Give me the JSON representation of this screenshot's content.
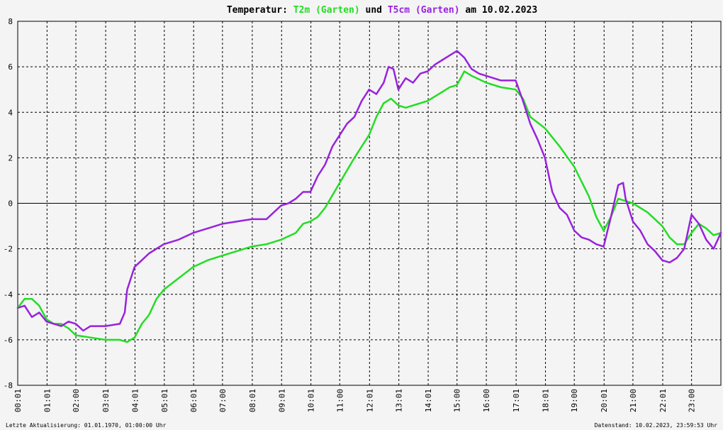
{
  "title": {
    "prefix": "Temperatur: ",
    "series1": "T2m (Garten)",
    "mid": " und ",
    "series2": "T5cm (Garten)",
    "suffix": " am 10.02.2023"
  },
  "footer": {
    "left": "Letzte Aktualisierung: 01.01.1970, 01:00:00 Uhr",
    "right": "Datenstand: 10.02.2023, 23:59:53 Uhr"
  },
  "colors": {
    "background": "#f4f4f4",
    "t2m": "#22dd22",
    "t5cm": "#9922dd",
    "grid": "#000000",
    "zero_line": "#000000"
  },
  "chart_data": {
    "type": "line",
    "title": "Temperatur: T2m (Garten) und T5cm (Garten) am 10.02.2023",
    "xlabel": "",
    "ylabel": "",
    "xlim": [
      "00:01",
      "24:00"
    ],
    "ylim": [
      -8,
      8
    ],
    "grid": true,
    "legend": "in title",
    "x_ticks": [
      "00:01",
      "01:01",
      "02:00",
      "03:01",
      "04:01",
      "05:01",
      "06:01",
      "07:00",
      "08:01",
      "09:01",
      "10:01",
      "11:00",
      "12:01",
      "13:01",
      "14:01",
      "15:00",
      "16:00",
      "17:01",
      "18:01",
      "19:00",
      "20:01",
      "21:00",
      "22:01",
      "23:00"
    ],
    "y_ticks": [
      8,
      6,
      4,
      2,
      0,
      -2,
      -4,
      -6,
      -8
    ],
    "series": [
      {
        "name": "T2m (Garten)",
        "color": "#22dd22",
        "x": [
          "00:01",
          "00:15",
          "00:30",
          "00:45",
          "01:00",
          "01:15",
          "01:30",
          "01:45",
          "02:00",
          "02:30",
          "03:00",
          "03:30",
          "03:45",
          "04:00",
          "04:15",
          "04:30",
          "04:45",
          "05:00",
          "05:30",
          "06:00",
          "06:30",
          "07:00",
          "07:30",
          "08:00",
          "08:30",
          "09:00",
          "09:30",
          "09:45",
          "10:00",
          "10:15",
          "10:30",
          "11:00",
          "11:30",
          "12:00",
          "12:15",
          "12:30",
          "12:45",
          "13:00",
          "13:15",
          "13:30",
          "14:00",
          "14:30",
          "14:45",
          "15:00",
          "15:15",
          "15:30",
          "16:00",
          "16:30",
          "17:00",
          "17:15",
          "17:30",
          "18:00",
          "18:30",
          "19:00",
          "19:30",
          "19:45",
          "20:00",
          "20:15",
          "20:30",
          "21:00",
          "21:30",
          "22:00",
          "22:15",
          "22:30",
          "22:45",
          "23:00",
          "23:15",
          "23:30",
          "23:45",
          "24:00"
        ],
        "values": [
          -4.6,
          -4.2,
          -4.2,
          -4.5,
          -5.1,
          -5.3,
          -5.3,
          -5.5,
          -5.8,
          -5.9,
          -6.0,
          -6.0,
          -6.1,
          -5.9,
          -5.3,
          -4.9,
          -4.2,
          -3.8,
          -3.3,
          -2.8,
          -2.5,
          -2.3,
          -2.1,
          -1.9,
          -1.8,
          -1.6,
          -1.3,
          -0.9,
          -0.8,
          -0.6,
          -0.2,
          0.9,
          2.0,
          3.0,
          3.8,
          4.4,
          4.6,
          4.3,
          4.2,
          4.3,
          4.5,
          4.9,
          5.1,
          5.2,
          5.8,
          5.6,
          5.3,
          5.1,
          5.0,
          4.6,
          3.8,
          3.3,
          2.5,
          1.6,
          0.3,
          -0.6,
          -1.2,
          -0.6,
          0.2,
          0.0,
          -0.4,
          -1.0,
          -1.5,
          -1.8,
          -1.8,
          -1.3,
          -0.9,
          -1.1,
          -1.4,
          -1.3
        ]
      },
      {
        "name": "T5cm (Garten)",
        "color": "#9922dd",
        "x": [
          "00:01",
          "00:15",
          "00:30",
          "00:45",
          "01:00",
          "01:15",
          "01:30",
          "01:45",
          "02:00",
          "02:15",
          "02:30",
          "03:00",
          "03:30",
          "03:40",
          "03:45",
          "04:00",
          "04:15",
          "04:30",
          "05:00",
          "05:30",
          "06:00",
          "06:30",
          "07:00",
          "07:30",
          "08:00",
          "08:30",
          "08:45",
          "09:00",
          "09:15",
          "09:30",
          "09:45",
          "10:00",
          "10:15",
          "10:30",
          "10:45",
          "11:00",
          "11:15",
          "11:30",
          "11:45",
          "12:00",
          "12:15",
          "12:30",
          "12:40",
          "12:50",
          "13:00",
          "13:15",
          "13:30",
          "13:45",
          "14:00",
          "14:15",
          "14:30",
          "14:45",
          "15:00",
          "15:15",
          "15:30",
          "15:45",
          "16:00",
          "16:30",
          "17:00",
          "17:15",
          "17:30",
          "17:45",
          "18:00",
          "18:15",
          "18:30",
          "18:45",
          "19:00",
          "19:15",
          "19:30",
          "19:45",
          "20:00",
          "20:15",
          "20:30",
          "20:40",
          "20:45",
          "21:00",
          "21:15",
          "21:30",
          "21:45",
          "22:00",
          "22:15",
          "22:30",
          "22:45",
          "23:00",
          "23:15",
          "23:30",
          "23:45",
          "24:00"
        ],
        "values": [
          -4.6,
          -4.5,
          -5.0,
          -4.8,
          -5.2,
          -5.3,
          -5.4,
          -5.2,
          -5.3,
          -5.6,
          -5.4,
          -5.4,
          -5.3,
          -4.8,
          -3.8,
          -2.8,
          -2.5,
          -2.2,
          -1.8,
          -1.6,
          -1.3,
          -1.1,
          -0.9,
          -0.8,
          -0.7,
          -0.7,
          -0.4,
          -0.1,
          0.0,
          0.2,
          0.5,
          0.5,
          1.2,
          1.7,
          2.5,
          3.0,
          3.5,
          3.8,
          4.5,
          5.0,
          4.8,
          5.3,
          6.0,
          5.9,
          5.0,
          5.5,
          5.3,
          5.7,
          5.8,
          6.1,
          6.3,
          6.5,
          6.7,
          6.4,
          5.9,
          5.7,
          5.6,
          5.4,
          5.4,
          4.5,
          3.5,
          2.8,
          2.0,
          0.5,
          -0.2,
          -0.5,
          -1.2,
          -1.5,
          -1.6,
          -1.8,
          -1.9,
          -0.6,
          0.8,
          0.9,
          0.2,
          -0.8,
          -1.2,
          -1.8,
          -2.1,
          -2.5,
          -2.6,
          -2.4,
          -2.0,
          -0.5,
          -0.9,
          -1.6,
          -2.0,
          -1.3
        ]
      }
    ]
  }
}
